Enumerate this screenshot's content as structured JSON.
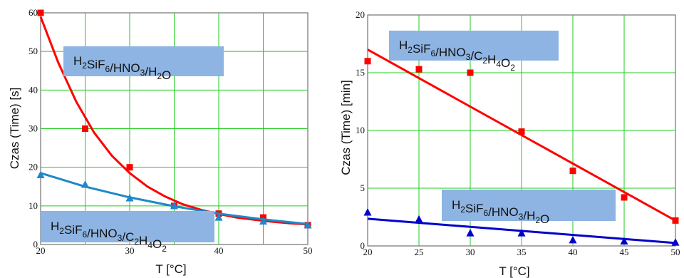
{
  "chart_data": [
    {
      "type": "scatter",
      "xlabel": "T [°C]",
      "ylabel": "Czas (Time) [s]",
      "xlim": [
        20,
        50
      ],
      "ylim": [
        0,
        60
      ],
      "xticks": [
        "20",
        "30",
        "40",
        "50"
      ],
      "yticks": [
        "0",
        "10",
        "20",
        "30",
        "40",
        "50",
        "60"
      ],
      "grid": true,
      "annotations": [
        {
          "text": "H2SiF6/HNO3/H2O",
          "series_ref": 0
        },
        {
          "text": "H2SiF6/HNO3/C2H4O2",
          "series_ref": 1
        }
      ],
      "series": [
        {
          "color": "#ff0000",
          "marker": "square",
          "fit": "exponential",
          "points": [
            [
              20,
              60
            ],
            [
              25,
              30
            ],
            [
              30,
              20
            ],
            [
              35,
              10
            ],
            [
              40,
              8
            ],
            [
              45,
              7
            ],
            [
              50,
              5
            ]
          ],
          "fit_points": [
            [
              20,
              59
            ],
            [
              22,
              47
            ],
            [
              24,
              37
            ],
            [
              26,
              29
            ],
            [
              28,
              23
            ],
            [
              30,
              18.5
            ],
            [
              32,
              15
            ],
            [
              34,
              12.4
            ],
            [
              36,
              10.4
            ],
            [
              38,
              9
            ],
            [
              40,
              7.9
            ],
            [
              42,
              7
            ],
            [
              44,
              6.4
            ],
            [
              46,
              5.9
            ],
            [
              48,
              5.5
            ],
            [
              50,
              5.2
            ]
          ]
        },
        {
          "color": "#1e88c9",
          "marker": "triangle",
          "fit": "exponential",
          "points": [
            [
              20,
              18
            ],
            [
              25,
              15.5
            ],
            [
              30,
              12
            ],
            [
              35,
              10
            ],
            [
              40,
              7
            ],
            [
              45,
              6
            ],
            [
              50,
              5
            ]
          ],
          "fit_points": [
            [
              20,
              18.5
            ],
            [
              25,
              15
            ],
            [
              30,
              12.2
            ],
            [
              35,
              9.9
            ],
            [
              40,
              8
            ],
            [
              45,
              6.5
            ],
            [
              50,
              5.3
            ]
          ]
        }
      ]
    },
    {
      "type": "scatter",
      "xlabel": "T [°C]",
      "ylabel": "Czas (Time) [min]",
      "xlim": [
        20,
        50
      ],
      "ylim": [
        0,
        20
      ],
      "xticks": [
        "20",
        "25",
        "30",
        "35",
        "40",
        "45",
        "50"
      ],
      "yticks": [
        "0",
        "5",
        "10",
        "15",
        "20"
      ],
      "grid": true,
      "annotations": [
        {
          "text": "H2SiF6/HNO3/C2H4O2",
          "series_ref": 0
        },
        {
          "text": "H2SiF6/HNO3/H2O",
          "series_ref": 1
        }
      ],
      "series": [
        {
          "color": "#ff0000",
          "marker": "square",
          "fit": "linear",
          "points": [
            [
              20,
              16
            ],
            [
              25,
              15.3
            ],
            [
              30,
              15
            ],
            [
              35,
              9.9
            ],
            [
              40,
              6.5
            ],
            [
              45,
              4.2
            ],
            [
              50,
              2.2
            ]
          ],
          "fit_points": [
            [
              20,
              17
            ],
            [
              50,
              2.2
            ]
          ]
        },
        {
          "color": "#0000cc",
          "marker": "triangle",
          "fit": "linear",
          "points": [
            [
              20,
              2.9
            ],
            [
              25,
              2.3
            ],
            [
              30,
              1.1
            ],
            [
              35,
              1.1
            ],
            [
              40,
              0.5
            ],
            [
              45,
              0.4
            ],
            [
              50,
              0.3
            ]
          ],
          "fit_points": [
            [
              20,
              2.35
            ],
            [
              50,
              0.25
            ]
          ]
        }
      ]
    }
  ]
}
